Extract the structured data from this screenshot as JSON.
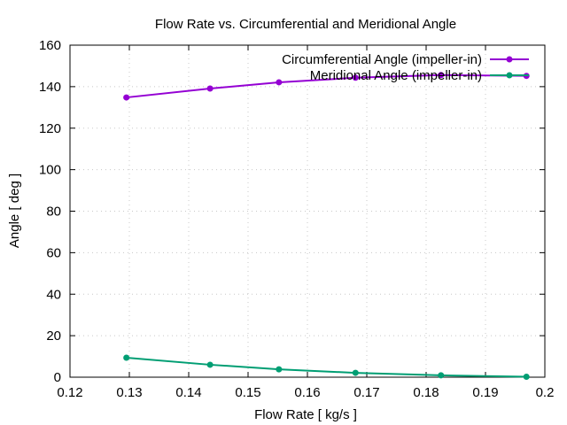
{
  "chart_data": {
    "type": "line",
    "title": "Flow Rate vs. Circumferential and Meridional Angle",
    "xlabel": "Flow Rate [ kg/s ]",
    "ylabel": "Angle [ deg ]",
    "xlim": [
      0.12,
      0.2
    ],
    "ylim": [
      0,
      160
    ],
    "xticks": [
      0.12,
      0.13,
      0.14,
      0.15,
      0.16,
      0.17,
      0.18,
      0.19,
      0.2
    ],
    "xtick_labels": [
      "0.12",
      "0.13",
      "0.14",
      "0.15",
      "0.16",
      "0.17",
      "0.18",
      "0.19",
      "0.2"
    ],
    "yticks": [
      0,
      20,
      40,
      60,
      80,
      100,
      120,
      140,
      160
    ],
    "ytick_labels": [
      "0",
      "20",
      "40",
      "60",
      "80",
      "100",
      "120",
      "140",
      "160"
    ],
    "grid": true,
    "legend_position": "top-right",
    "series": [
      {
        "name": "Circumferential Angle (impeller-in)",
        "color": "#9400d3",
        "x": [
          0.1295,
          0.1436,
          0.1552,
          0.1681,
          0.1825,
          0.1969
        ],
        "y": [
          134.8,
          139.1,
          142.1,
          144.3,
          145.6,
          145.2
        ]
      },
      {
        "name": "Meridional Angle (impeller-in)",
        "color": "#009e73",
        "x": [
          0.1295,
          0.1436,
          0.1552,
          0.1681,
          0.1825,
          0.1969
        ],
        "y": [
          9.4,
          6.0,
          3.8,
          2.1,
          0.9,
          0.2
        ]
      }
    ]
  }
}
